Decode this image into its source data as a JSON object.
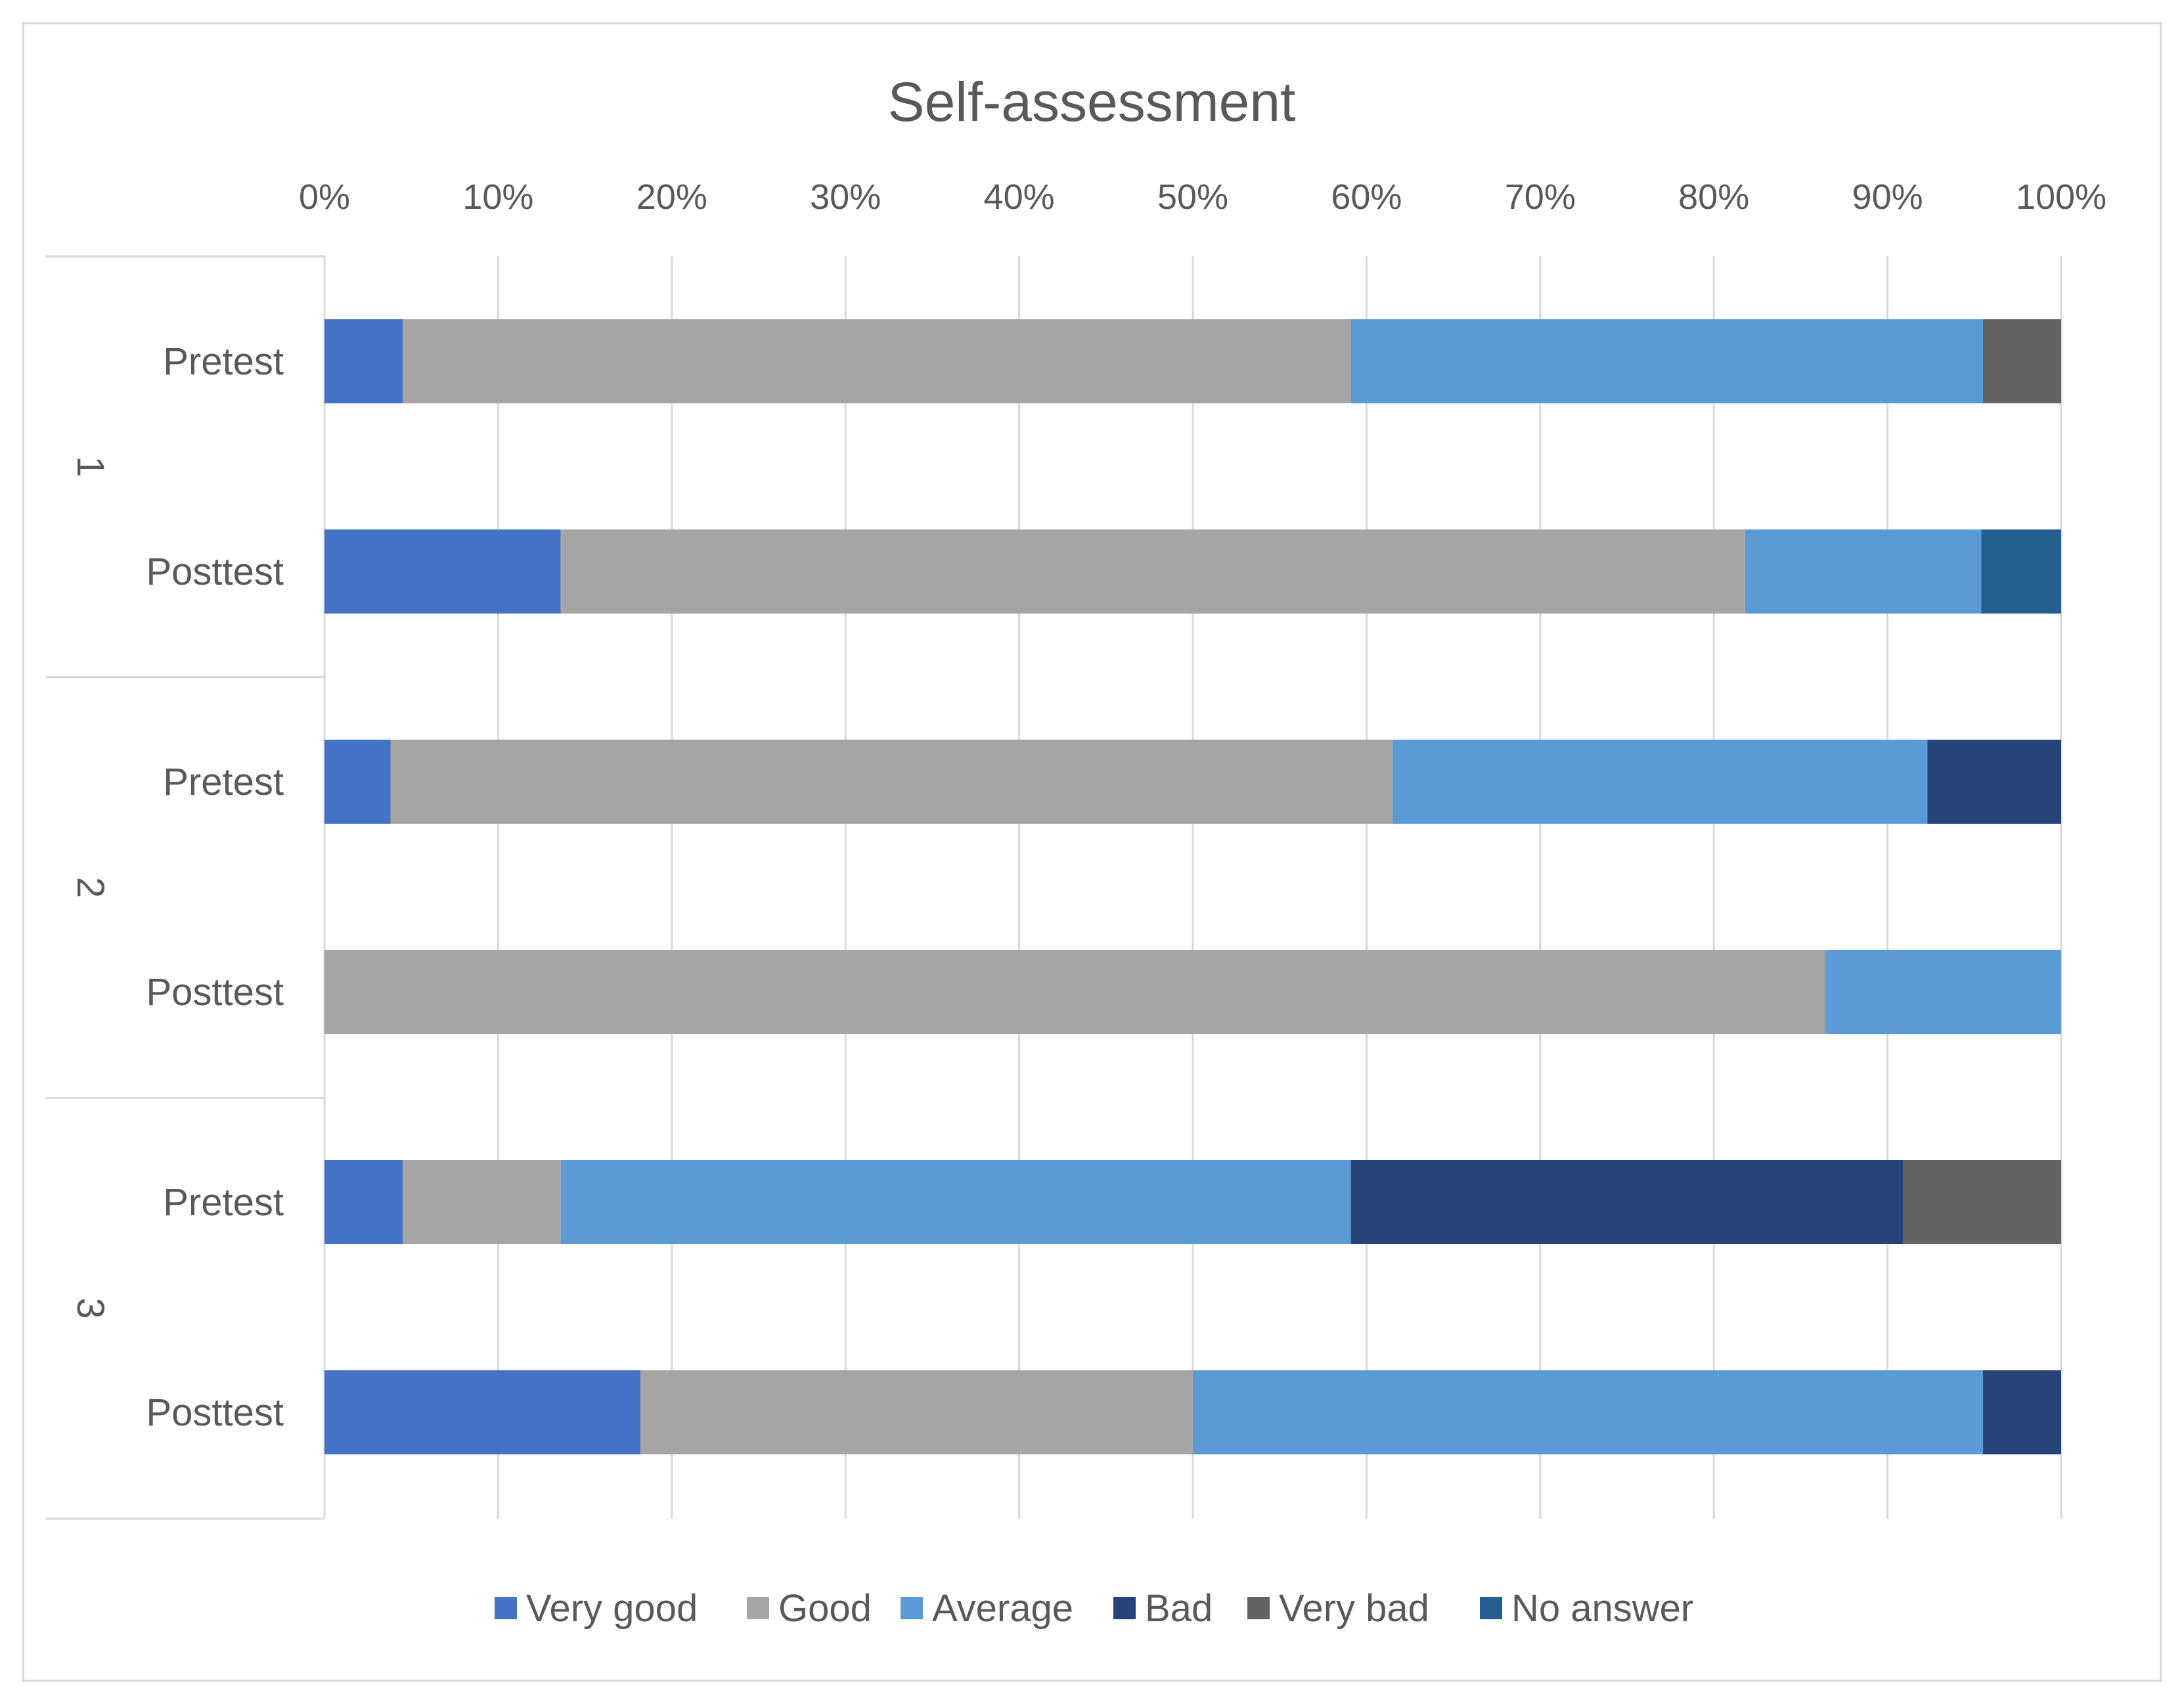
{
  "chart_data": {
    "type": "bar",
    "orientation": "horizontal",
    "stacked": "percent",
    "title": "Self-assessment",
    "x_ticks": [
      "0%",
      "10%",
      "20%",
      "30%",
      "40%",
      "50%",
      "60%",
      "70%",
      "80%",
      "90%",
      "100%"
    ],
    "xlim": [
      0,
      100
    ],
    "x_axis_position": "top",
    "grid": true,
    "legend_position": "bottom",
    "groups": [
      "1",
      "2",
      "3"
    ],
    "categories": [
      {
        "group": "1",
        "label": "Pretest"
      },
      {
        "group": "1",
        "label": "Posttest"
      },
      {
        "group": "2",
        "label": "Pretest"
      },
      {
        "group": "2",
        "label": "Posttest"
      },
      {
        "group": "3",
        "label": "Pretest"
      },
      {
        "group": "3",
        "label": "Posttest"
      }
    ],
    "series": [
      {
        "name": "Very good",
        "color": "#4472C4",
        "values": [
          4.5,
          13.6,
          3.8,
          0,
          4.5,
          18.2
        ]
      },
      {
        "name": "Good",
        "color": "#A5A5A5",
        "values": [
          54.6,
          68.2,
          57.7,
          86.4,
          9.1,
          31.8
        ]
      },
      {
        "name": "Average",
        "color": "#5B9BD5",
        "values": [
          36.4,
          13.6,
          30.8,
          13.6,
          45.5,
          45.5
        ]
      },
      {
        "name": "Bad",
        "color": "#264478",
        "values": [
          0,
          0,
          7.7,
          0,
          31.8,
          4.5
        ]
      },
      {
        "name": "Very bad",
        "color": "#636363",
        "values": [
          4.5,
          0,
          0,
          0,
          9.1,
          0
        ]
      },
      {
        "name": "No answer",
        "color": "#255E91",
        "values": [
          0,
          4.6,
          0,
          0,
          0,
          0
        ]
      }
    ]
  }
}
